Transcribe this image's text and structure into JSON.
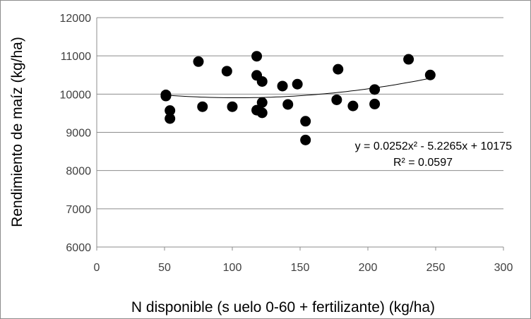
{
  "chart_data": {
    "type": "scatter",
    "title": "",
    "xlabel": "N disponible (s uelo 0-60 + fertilizante) (kg/ha)",
    "ylabel": "Rendimiento de maíz (kg/ha)",
    "xlim": [
      0,
      300
    ],
    "ylim": [
      6000,
      12000
    ],
    "x_ticks": [
      0,
      50,
      100,
      150,
      200,
      250,
      300
    ],
    "y_ticks": [
      6000,
      7000,
      8000,
      9000,
      10000,
      11000,
      12000
    ],
    "grid": "horizontal",
    "legend": "none",
    "marker_color": "#000000",
    "series": [
      {
        "points": [
          {
            "x": 51,
            "y": 9980
          },
          {
            "x": 51,
            "y": 9950
          },
          {
            "x": 54,
            "y": 9570
          },
          {
            "x": 54,
            "y": 9360
          },
          {
            "x": 75,
            "y": 10850
          },
          {
            "x": 78,
            "y": 9670
          },
          {
            "x": 96,
            "y": 10600
          },
          {
            "x": 100,
            "y": 9670
          },
          {
            "x": 118,
            "y": 10990
          },
          {
            "x": 118,
            "y": 10490
          },
          {
            "x": 118,
            "y": 9580
          },
          {
            "x": 122,
            "y": 10330
          },
          {
            "x": 122,
            "y": 9780
          },
          {
            "x": 122,
            "y": 9510
          },
          {
            "x": 137,
            "y": 10210
          },
          {
            "x": 141,
            "y": 9730
          },
          {
            "x": 148,
            "y": 10260
          },
          {
            "x": 154,
            "y": 9290
          },
          {
            "x": 154,
            "y": 8800
          },
          {
            "x": 177,
            "y": 9850
          },
          {
            "x": 178,
            "y": 10650
          },
          {
            "x": 189,
            "y": 9690
          },
          {
            "x": 205,
            "y": 10120
          },
          {
            "x": 205,
            "y": 9740
          },
          {
            "x": 230,
            "y": 10910
          },
          {
            "x": 246,
            "y": 10500
          }
        ]
      }
    ],
    "trendline": {
      "type": "polynomial",
      "coefficients": [
        0.0252,
        -5.2265,
        10175
      ],
      "x_range": [
        51,
        246
      ],
      "equation_label": "y = 0.0252x² - 5.2265x + 10175",
      "r2_label": "R² = 0.0597"
    }
  }
}
